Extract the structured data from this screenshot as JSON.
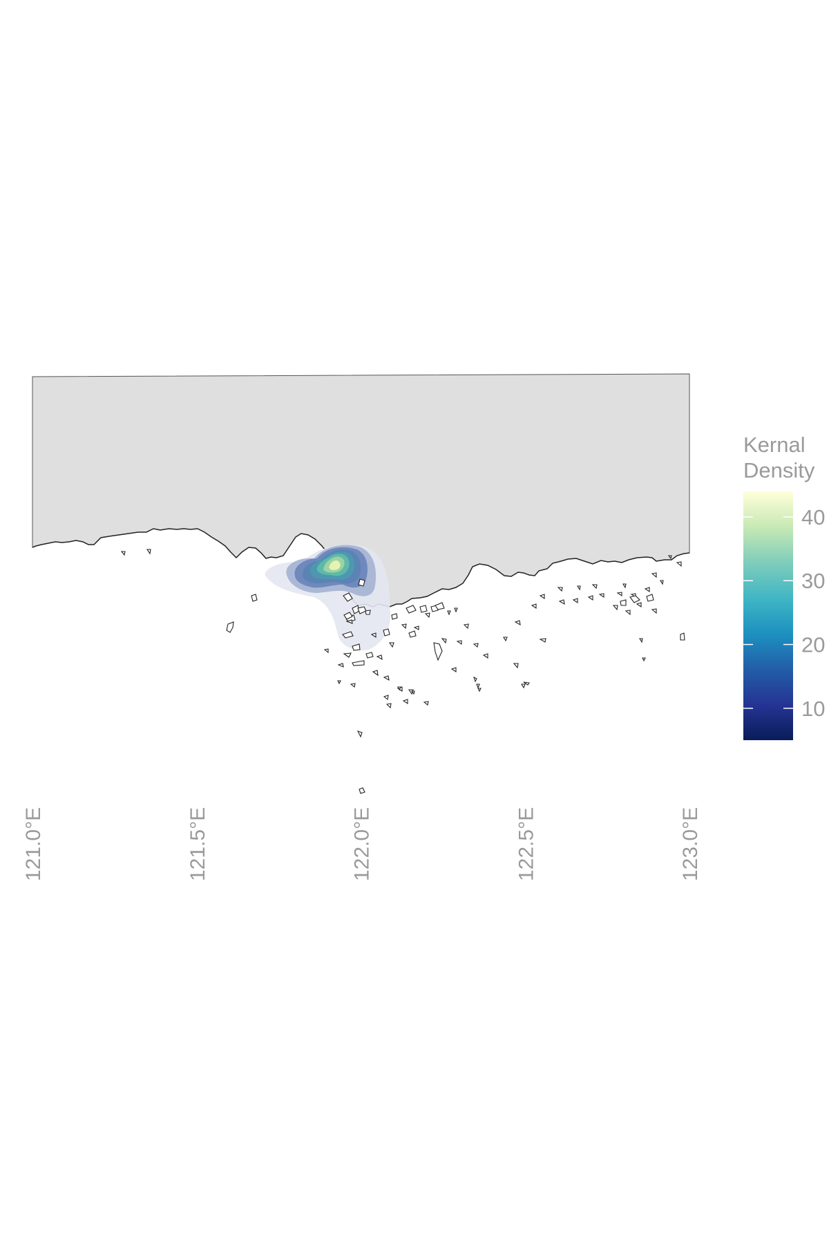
{
  "map": {
    "land_fill": "#dfdfdf",
    "coast_stroke": "#222222",
    "x_axis": {
      "range": [
        121.0,
        123.0
      ],
      "ticks": [
        {
          "value": 121.0,
          "label": "121.0°E"
        },
        {
          "value": 121.5,
          "label": "121.5°E"
        },
        {
          "value": 122.0,
          "label": "122.0°E"
        },
        {
          "value": 122.5,
          "label": "122.5°E"
        },
        {
          "value": 123.0,
          "label": "123.0°E"
        }
      ]
    }
  },
  "density": {
    "peak_lon": 121.92,
    "peak_value": 44,
    "levels": [
      {
        "value": 5,
        "color": "#e3e7f1"
      },
      {
        "value": 10,
        "color": "#aab8d6"
      },
      {
        "value": 15,
        "color": "#6f89bd"
      },
      {
        "value": 20,
        "color": "#5b83b3"
      },
      {
        "value": 25,
        "color": "#4d98b0"
      },
      {
        "value": 30,
        "color": "#5fb9a8"
      },
      {
        "value": 35,
        "color": "#9dd3a3"
      },
      {
        "value": 40,
        "color": "#e6f3b2"
      }
    ]
  },
  "legend": {
    "title_line1": "Kernal",
    "title_line2": "Density",
    "range": [
      5,
      44
    ],
    "ticks": [
      {
        "value": 10,
        "label": "10"
      },
      {
        "value": 20,
        "label": "20"
      },
      {
        "value": 30,
        "label": "30"
      },
      {
        "value": 40,
        "label": "40"
      }
    ],
    "colors": [
      "#081d58",
      "#253494",
      "#225ea8",
      "#1d91c0",
      "#41b6c4",
      "#7fcdbb",
      "#c7e9b4",
      "#ffffd9"
    ]
  }
}
